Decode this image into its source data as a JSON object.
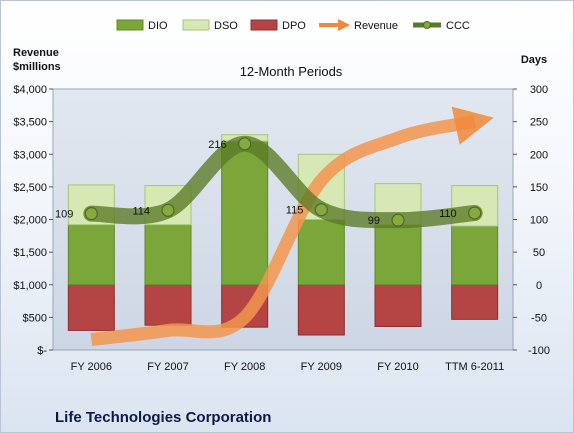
{
  "chart_data": {
    "type": "bar",
    "subtitle": "12-Month Periods",
    "company": "Life Technologies Corporation",
    "left_axis_title": [
      "Revenue",
      "$millions"
    ],
    "right_axis_title": "Days",
    "categories": [
      "FY 2006",
      "FY 2007",
      "FY 2008",
      "FY 2009",
      "FY 2010",
      "TTM 6-2011"
    ],
    "left_axis": {
      "ticks": [
        4000,
        3500,
        3000,
        2500,
        2000,
        1500,
        1000,
        500,
        0
      ],
      "tick_labels": [
        "$4,000",
        "$3,500",
        "$3,000",
        "$2,500",
        "$2,000",
        "$1,500",
        "$1,000",
        "$500",
        "$-"
      ],
      "ylim": [
        0,
        4000
      ]
    },
    "right_axis": {
      "ticks": [
        300,
        250,
        200,
        150,
        100,
        50,
        0,
        -50,
        -100
      ],
      "tick_labels": [
        "300",
        "250",
        "200",
        "150",
        "100",
        "50",
        "0",
        "-50",
        "-100"
      ],
      "ylim": [
        -100,
        300
      ]
    },
    "series": [
      {
        "name": "DIO",
        "kind": "bar-stack",
        "axis": "days",
        "color": "#7aa63a",
        "values": [
          92,
          92,
          220,
          100,
          92,
          90
        ]
      },
      {
        "name": "DSO",
        "kind": "bar-stack",
        "axis": "days",
        "color": "#d7e8b4",
        "values": [
          61,
          60,
          10,
          100,
          63,
          62
        ]
      },
      {
        "name": "DPO",
        "kind": "bar-stack-negative",
        "axis": "days",
        "color": "#b54545",
        "values": [
          -70,
          -62,
          -65,
          -77,
          -64,
          -53
        ]
      },
      {
        "name": "Revenue",
        "kind": "line",
        "axis": "revenue",
        "color": "#f2954e",
        "values": [
          160,
          300,
          500,
          2600,
          3250,
          3500
        ]
      },
      {
        "name": "CCC",
        "kind": "line",
        "axis": "days",
        "color": "#5b7a25",
        "values": [
          109,
          114,
          216,
          115,
          99,
          110
        ]
      }
    ],
    "ccc_labels": [
      "109",
      "114",
      "216",
      "115",
      "99",
      "110"
    ],
    "legend": [
      "DIO",
      "DSO",
      "DPO",
      "Revenue",
      "CCC"
    ],
    "legend_position": "top",
    "grid": false
  }
}
